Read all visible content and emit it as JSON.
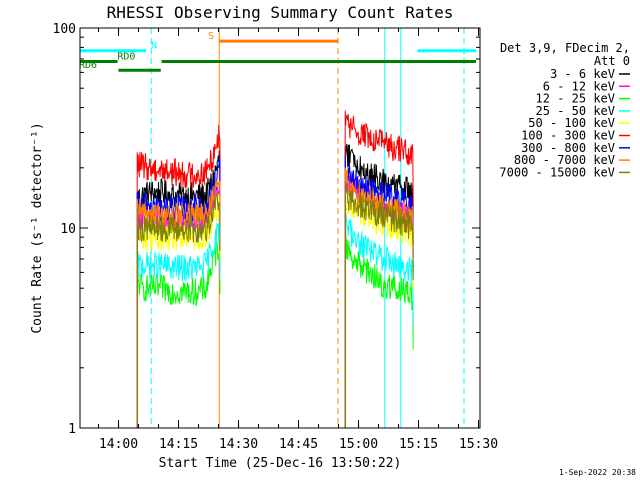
{
  "chart_data": {
    "type": "line",
    "title": "RHESSI Observing Summary Count Rates",
    "xlabel": "Start Time (25-Dec-16 13:50:22)",
    "ylabel": "Count Rate (s⁻¹ detector⁻¹)",
    "yscale": "log",
    "ylim": [
      1,
      100
    ],
    "xlim_minutes": [
      0,
      100
    ],
    "ytick_labels": [
      "1",
      "10",
      "100"
    ],
    "xticks": [
      {
        "label": "14:00",
        "minute": 9.63
      },
      {
        "label": "14:15",
        "minute": 24.63
      },
      {
        "label": "14:30",
        "minute": 39.63
      },
      {
        "label": "14:45",
        "minute": 54.63
      },
      {
        "label": "15:00",
        "minute": 69.63
      },
      {
        "label": "15:15",
        "minute": 84.63
      },
      {
        "label": "15:30",
        "minute": 99.63
      }
    ],
    "legend_title": [
      "Det 3,9, FDecim 2,",
      "Att 0"
    ],
    "legend_position": "right",
    "series": [
      {
        "name": "3 - 6 keV",
        "color": "#000000",
        "segments": [
          {
            "x": [
              14.3,
              15.5,
              17.5,
              20.5,
              23.5,
              26.5,
              29.5,
              31.5,
              32.5,
              33.5,
              34.5,
              35.0
            ],
            "y": [
              14.0,
              14.5,
              15.0,
              15.0,
              14.5,
              14.5,
              14.5,
              14.5,
              16.0,
              18.0,
              21.0,
              23.0
            ]
          },
          {
            "x": [
              66.3,
              67.5,
              70.0,
              73.0,
              76.0,
              79.0,
              81.5,
              83.3
            ],
            "y": [
              24.0,
              23.0,
              20.0,
              18.0,
              17.0,
              16.0,
              15.5,
              15.0
            ]
          }
        ]
      },
      {
        "name": "6 - 12 keV",
        "color": "#ff00ff",
        "segments": [
          {
            "x": [
              14.3,
              15.5,
              17.5,
              20.5,
              23.5,
              26.5,
              29.5,
              31.5,
              32.5,
              33.5,
              34.5,
              35.0
            ],
            "y": [
              11.0,
              11.5,
              11.5,
              11.0,
              11.0,
              11.0,
              10.8,
              11.0,
              12.5,
              14.0,
              15.5,
              16.5
            ]
          },
          {
            "x": [
              66.3,
              67.5,
              70.0,
              73.0,
              76.0,
              79.0,
              81.5,
              83.3
            ],
            "y": [
              17.5,
              16.5,
              15.0,
              13.5,
              12.5,
              12.0,
              11.5,
              11.0
            ]
          }
        ]
      },
      {
        "name": "12 - 25 keV",
        "color": "#00ff00",
        "segments": [
          {
            "x": [
              14.3,
              15.5,
              17.5,
              20.5,
              23.5,
              26.5,
              29.5,
              31.5,
              32.5,
              33.5,
              34.5,
              35.0
            ],
            "y": [
              5.5,
              5.0,
              5.0,
              5.0,
              4.8,
              4.8,
              4.8,
              5.0,
              6.0,
              7.0,
              8.0,
              8.5
            ]
          },
          {
            "x": [
              66.3,
              67.5,
              70.0,
              73.0,
              76.0,
              79.0,
              81.5,
              83.3
            ],
            "y": [
              8.5,
              7.5,
              6.5,
              5.8,
              5.2,
              5.0,
              4.8,
              4.5
            ]
          }
        ]
      },
      {
        "name": "25 - 50 keV",
        "color": "#00ffff",
        "segments": [
          {
            "x": [
              14.3,
              15.5,
              17.5,
              20.5,
              23.5,
              26.5,
              29.5,
              31.5,
              32.5,
              33.5,
              34.5,
              35.0
            ],
            "y": [
              6.5,
              6.5,
              6.5,
              6.5,
              6.3,
              6.3,
              6.3,
              6.5,
              7.5,
              8.5,
              9.5,
              10.0
            ]
          },
          {
            "x": [
              66.3,
              67.5,
              70.0,
              73.0,
              76.0,
              79.0,
              81.5,
              83.3
            ],
            "y": [
              10.5,
              9.5,
              8.5,
              7.5,
              7.0,
              6.5,
              6.3,
              6.0
            ]
          }
        ]
      },
      {
        "name": "50 - 100 keV",
        "color": "#ffff00",
        "segments": [
          {
            "x": [
              14.3,
              15.5,
              17.5,
              20.5,
              23.5,
              26.5,
              29.5,
              31.5,
              32.5,
              33.5,
              34.5,
              35.0
            ],
            "y": [
              9.0,
              9.0,
              9.0,
              9.0,
              8.8,
              8.8,
              8.8,
              9.0,
              10.0,
              11.5,
              12.5,
              13.0
            ]
          },
          {
            "x": [
              66.3,
              67.5,
              70.0,
              73.0,
              76.0,
              79.0,
              81.5,
              83.3
            ],
            "y": [
              14.0,
              13.0,
              12.0,
              11.0,
              10.5,
              10.0,
              9.5,
              9.0
            ]
          }
        ]
      },
      {
        "name": "100 - 300 keV",
        "color": "#ff0000",
        "segments": [
          {
            "x": [
              14.3,
              15.5,
              17.5,
              20.5,
              23.5,
              26.5,
              29.5,
              31.5,
              32.5,
              33.5,
              34.5,
              35.0
            ],
            "y": [
              21.0,
              20.5,
              20.0,
              19.5,
              19.0,
              18.5,
              18.5,
              19.0,
              21.0,
              24.0,
              28.0,
              32.0
            ]
          },
          {
            "x": [
              66.3,
              67.5,
              70.0,
              73.0,
              76.0,
              79.0,
              81.5,
              83.3
            ],
            "y": [
              34.0,
              32.0,
              30.0,
              28.0,
              26.0,
              25.0,
              24.0,
              23.0
            ]
          }
        ]
      },
      {
        "name": "300 - 800 keV",
        "color": "#0000ff",
        "segments": [
          {
            "x": [
              14.3,
              15.5,
              17.5,
              20.5,
              23.5,
              26.5,
              29.5,
              31.5,
              32.5,
              33.5,
              34.5,
              35.0
            ],
            "y": [
              13.0,
              13.0,
              13.0,
              12.5,
              12.5,
              12.5,
              12.5,
              12.5,
              14.0,
              16.0,
              18.0,
              20.0
            ]
          },
          {
            "x": [
              66.3,
              67.5,
              70.0,
              73.0,
              76.0,
              79.0,
              81.5,
              83.3
            ],
            "y": [
              20.0,
              18.0,
              16.5,
              15.5,
              14.5,
              14.0,
              13.5,
              13.0
            ]
          }
        ]
      },
      {
        "name": "800 - 7000 keV",
        "color": "#ff8000",
        "segments": [
          {
            "x": [
              14.3,
              15.5,
              17.5,
              20.5,
              23.5,
              26.5,
              29.5,
              31.5,
              32.5,
              33.5,
              34.5,
              35.0
            ],
            "y": [
              12.0,
              12.0,
              12.0,
              11.5,
              11.5,
              11.5,
              11.5,
              11.5,
              13.0,
              14.5,
              16.0,
              17.0
            ]
          },
          {
            "x": [
              66.3,
              67.5,
              70.0,
              73.0,
              76.0,
              79.0,
              81.5,
              83.3
            ],
            "y": [
              17.0,
              16.0,
              14.5,
              13.5,
              12.5,
              12.0,
              11.5,
              11.0
            ]
          }
        ]
      },
      {
        "name": "7000 - 15000 keV",
        "color": "#808000",
        "segments": [
          {
            "x": [
              14.3,
              15.5,
              17.5,
              20.5,
              23.5,
              26.5,
              29.5,
              31.5,
              32.5,
              33.5,
              34.5,
              35.0
            ],
            "y": [
              10.0,
              10.0,
              10.0,
              10.0,
              9.8,
              9.8,
              9.8,
              10.0,
              11.0,
              12.5,
              13.5,
              14.0
            ]
          },
          {
            "x": [
              66.3,
              67.5,
              70.0,
              73.0,
              76.0,
              79.0,
              81.5,
              83.3
            ],
            "y": [
              15.0,
              14.0,
              13.0,
              12.0,
              11.5,
              11.0,
              10.5,
              10.0
            ]
          }
        ]
      }
    ],
    "flags": [
      {
        "label": "N",
        "color": "#00ffff",
        "y_value": 77,
        "spans": [
          [
            0,
            16.5
          ],
          [
            84.4,
            99.0
          ]
        ],
        "label_minute": 18.5
      },
      {
        "label": "S",
        "color": "#ff8000",
        "y_value": 86,
        "spans": [
          [
            34.8,
            64.5
          ]
        ],
        "label_minute": 32.8
      },
      {
        "label": "RD0",
        "color": "#008000",
        "y_value": 68,
        "spans": [
          [
            0,
            9.4
          ],
          [
            20.4,
            99.0
          ]
        ],
        "label_minute": 11.6
      },
      {
        "label": "RD6",
        "color": "#008000",
        "y_value": 61.5,
        "spans": [
          [
            9.6,
            20.2
          ]
        ],
        "label_minute": 2.0
      }
    ],
    "vlines": [
      {
        "minute": 17.8,
        "color": "#00ffff",
        "style": "dashed"
      },
      {
        "minute": 34.8,
        "color": "#ff8000",
        "style": "solid"
      },
      {
        "minute": 64.5,
        "color": "#ff8000",
        "style": "dashed"
      },
      {
        "minute": 76.2,
        "color": "#00ffff",
        "style": "solid"
      },
      {
        "minute": 80.2,
        "color": "#00ffff",
        "style": "solid"
      },
      {
        "minute": 96.0,
        "color": "#00ffff",
        "style": "dashed"
      }
    ],
    "grid": false
  },
  "timestamp": "1-Sep-2022 20:38"
}
